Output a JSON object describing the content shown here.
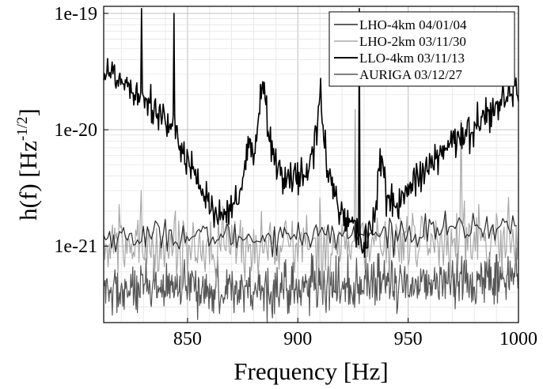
{
  "chart_data": {
    "type": "line",
    "xlabel": "Frequency [Hz]",
    "ylabel_main": "h(f) [Hz",
    "ylabel_exp": "-1/2",
    "ylabel_close": "]",
    "xlim": [
      812,
      1000
    ],
    "ylim": [
      2.2e-22,
      1.15e-19
    ],
    "y_scale": "log",
    "grid": true,
    "legend_position": "top-right",
    "x_ticks": [
      {
        "value": 850,
        "label": "850"
      },
      {
        "value": 900,
        "label": "900"
      },
      {
        "value": 950,
        "label": "950"
      },
      {
        "value": 1000,
        "label": "1000"
      }
    ],
    "y_ticks": [
      {
        "value": 1e-19,
        "label": "1e-19"
      },
      {
        "value": 1e-20,
        "label": "1e-20"
      },
      {
        "value": 1e-21,
        "label": "1e-21"
      }
    ],
    "series": [
      {
        "name": "LHO-4km 04/01/04",
        "color": "#2a2a2a",
        "width": 1.2,
        "x": [
          812,
          820,
          830,
          840,
          845,
          850,
          855,
          860,
          865,
          870,
          875,
          880,
          885,
          890,
          895,
          900,
          905,
          910,
          915,
          920,
          925,
          930,
          935,
          940,
          945,
          950,
          955,
          960,
          965,
          970,
          975,
          980,
          985,
          990,
          995,
          1000
        ],
        "y": [
          1.2e-21,
          1.2e-21,
          1.2e-21,
          1.3e-21,
          1.2e-21,
          1.2e-21,
          1.2e-21,
          1.2e-21,
          1.25e-21,
          1.2e-21,
          1.2e-21,
          1.2e-21,
          1.2e-21,
          1.2e-21,
          1.25e-21,
          1.25e-21,
          1.25e-21,
          1.25e-21,
          1.25e-21,
          1.25e-21,
          1.25e-21,
          1.25e-21,
          1.25e-21,
          1.3e-21,
          1.3e-21,
          1.3e-21,
          1.3e-21,
          1.4e-21,
          1.4e-21,
          1.4e-21,
          1.4e-21,
          1.45e-21,
          1.45e-21,
          1.45e-21,
          1.5e-21,
          1.5e-21
        ]
      },
      {
        "name": "LHO-2km 03/11/30",
        "color": "#a8a8a8",
        "width": 1.2,
        "x": [
          812,
          820,
          830,
          840,
          850,
          860,
          870,
          880,
          890,
          900,
          910,
          920,
          930,
          940,
          950,
          960,
          970,
          980,
          990,
          1000
        ],
        "y": [
          1e-21,
          1e-21,
          1e-21,
          1e-21,
          1e-21,
          1e-21,
          1e-21,
          1e-21,
          1e-21,
          1.05e-21,
          1.05e-21,
          1.05e-21,
          1.05e-21,
          1.05e-21,
          1.1e-21,
          1.1e-21,
          1.1e-21,
          1.1e-21,
          1.1e-21,
          1.1e-21
        ]
      },
      {
        "name": "LLO-4km 03/11/13",
        "color": "#000000",
        "width": 1.6,
        "x": [
          812,
          820,
          830,
          840,
          850,
          855,
          860,
          865,
          870,
          875,
          878,
          880,
          884,
          888,
          890,
          895,
          900,
          905,
          908,
          910,
          913,
          915,
          920,
          925,
          930,
          935,
          938,
          940,
          945,
          950,
          955,
          960,
          965,
          970,
          975,
          980,
          985,
          990,
          995,
          1000
        ],
        "y": [
          3.3e-20,
          2.7e-20,
          2e-20,
          1.2e-20,
          6e-21,
          3.5e-21,
          2.3e-21,
          1.6e-21,
          2e-21,
          3.2e-21,
          8e-21,
          5e-21,
          3e-20,
          6e-21,
          5e-21,
          4e-21,
          3.8e-21,
          4.5e-21,
          8e-21,
          2e-20,
          5e-21,
          3.5e-21,
          2e-21,
          1.5e-21,
          1e-21,
          1.8e-21,
          6.5e-21,
          2.5e-21,
          2.3e-21,
          3e-21,
          3.8e-21,
          5e-21,
          6e-21,
          7.5e-21,
          9e-21,
          1.1e-20,
          1.35e-20,
          1.6e-20,
          1.9e-20,
          2.3e-20
        ]
      },
      {
        "name": "AURIGA 03/12/27",
        "color": "#555555",
        "width": 1.2,
        "x": [
          812,
          820,
          830,
          840,
          850,
          860,
          870,
          880,
          890,
          900,
          910,
          920,
          930,
          940,
          950,
          960,
          970,
          980,
          990,
          1000
        ],
        "y": [
          4e-22,
          4.1e-22,
          4.1e-22,
          4.2e-22,
          4.2e-22,
          4.2e-22,
          4.3e-22,
          4.3e-22,
          4.3e-22,
          4.4e-22,
          4.4e-22,
          4.5e-22,
          4.6e-22,
          4.7e-22,
          4.8e-22,
          4.9e-22,
          5e-22,
          5.1e-22,
          5.3e-22,
          5.5e-22
        ]
      }
    ]
  }
}
